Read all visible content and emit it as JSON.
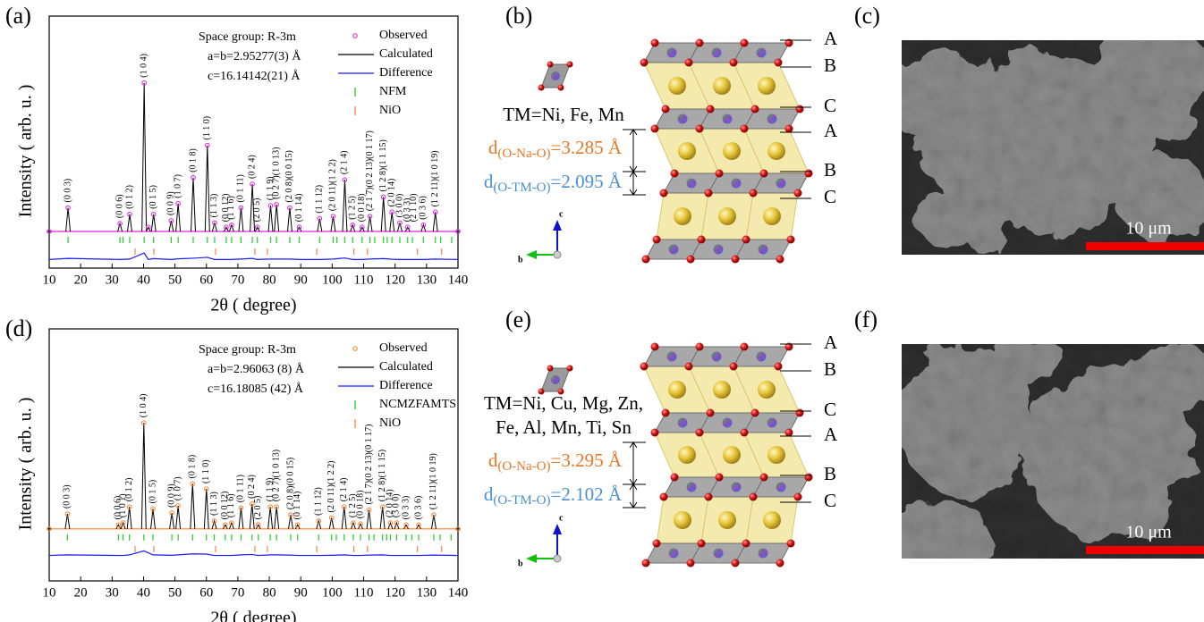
{
  "chart_data": [
    {
      "type": "line",
      "panel": "(a)",
      "ylabel": "Intensity ( arb. u. )",
      "xlabel": "2θ ( degree)",
      "annotations": [
        "Space group: R-3m",
        "a=b=2.95277(3) Å",
        "c=16.14142(21) Å"
      ],
      "xlim": [
        10,
        140
      ],
      "xticks": [
        10,
        20,
        30,
        40,
        50,
        60,
        70,
        80,
        90,
        100,
        110,
        120,
        130,
        140
      ],
      "ylim": [
        -17,
        100
      ],
      "x": [
        10,
        16,
        32.5,
        35.6,
        40.2,
        41.5,
        43.2,
        48.8,
        51,
        55.8,
        60.3,
        62.6,
        66.3,
        68,
        71,
        74.6,
        76.2,
        80.4,
        82.3,
        86.5,
        89.5,
        96,
        100.3,
        104,
        106.5,
        109.5,
        112,
        116.3,
        119,
        121.5,
        124,
        129,
        132.8,
        140
      ],
      "series": [
        {
          "name": "Observed",
          "color": "#e020e0",
          "marker": "circle",
          "values": [
            0,
            11,
            3.7,
            8,
            69,
            2,
            8,
            5,
            13,
            25,
            40,
            4,
            2,
            3,
            11,
            22,
            2,
            12,
            12.5,
            11,
            2,
            6,
            7,
            24,
            3,
            2,
            7,
            16,
            9,
            4,
            2,
            3,
            9,
            0
          ]
        },
        {
          "name": "Calculated",
          "color": "#000000",
          "values": [
            0,
            11,
            3.7,
            8,
            69,
            2,
            8,
            5,
            13,
            25,
            40,
            4,
            2,
            3,
            11,
            22,
            2,
            12,
            12.5,
            11,
            2,
            6,
            7,
            24,
            3,
            2,
            7,
            16,
            9,
            4,
            2,
            3,
            9,
            0
          ]
        },
        {
          "name": "Difference",
          "color": "#1a1aff",
          "values": [
            -13,
            -12.5,
            -13,
            -12.8,
            -10,
            -13,
            -12.6,
            -13,
            -12.7,
            -12.4,
            -12,
            -13,
            -13,
            -13,
            -12.8,
            -12.5,
            -13,
            -12.8,
            -12.8,
            -12.8,
            -13,
            -13,
            -12.8,
            -12.3,
            -13,
            -13,
            -12.8,
            -12.6,
            -12.9,
            -13,
            -13,
            -13,
            -12.8,
            -13
          ]
        }
      ],
      "reflections": [
        {
          "name": "NFM",
          "color": "#22cc22",
          "positions": [
            16,
            32.5,
            33.5,
            35.6,
            40.2,
            43.2,
            48.8,
            51,
            55.8,
            60.3,
            62.6,
            66.3,
            68,
            71,
            74.6,
            76.2,
            80.4,
            82.3,
            86.5,
            89.5,
            96,
            100.3,
            101.5,
            104,
            106.5,
            109.5,
            112,
            113.5,
            116.3,
            117.5,
            119,
            121.5,
            124,
            125.5,
            129,
            132.8,
            134.5,
            138
          ]
        },
        {
          "name": "NiO",
          "color": "#ff8040",
          "positions": [
            37.3,
            43.3,
            62.9,
            75.4,
            79.4,
            95.1,
            106.9,
            111.2,
            127.1,
            134.8
          ]
        }
      ],
      "peak_labels": [
        {
          "x": 16,
          "label": "(0 0 3)"
        },
        {
          "x": 32.5,
          "label": "(0 0 6)"
        },
        {
          "x": 35.6,
          "label": "(0 1 2)"
        },
        {
          "x": 40.2,
          "label": "(1 0 4)"
        },
        {
          "x": 43.2,
          "label": "(0 1 5)"
        },
        {
          "x": 48.8,
          "label": "(0 0 9)"
        },
        {
          "x": 51,
          "label": "(1 0 7)"
        },
        {
          "x": 55.8,
          "label": "(0 1 8)"
        },
        {
          "x": 60.3,
          "label": "(1 1 0)"
        },
        {
          "x": 62.6,
          "label": "(1 1 3)"
        },
        {
          "x": 66.3,
          "label": "(0 0 12)"
        },
        {
          "x": 68,
          "label": "(1 1 6)"
        },
        {
          "x": 71,
          "label": "(0 1 11)"
        },
        {
          "x": 74.6,
          "label": "(0 2 4)"
        },
        {
          "x": 76.2,
          "label": "(2 0 5)"
        },
        {
          "x": 80.4,
          "label": "(1 1 9)"
        },
        {
          "x": 82.3,
          "label": "(0 2 7)(1 0 13)"
        },
        {
          "x": 86.5,
          "label": "(2 0 8)(0 0 15)"
        },
        {
          "x": 89.5,
          "label": "(0 1 14)"
        },
        {
          "x": 96,
          "label": "(1 1 12)"
        },
        {
          "x": 100.3,
          "label": "(2 0 11)(1 2 2)"
        },
        {
          "x": 104,
          "label": "(2 1 4)"
        },
        {
          "x": 106.5,
          "label": "(1 2 5)"
        },
        {
          "x": 109.5,
          "label": "(0 0 18)"
        },
        {
          "x": 112,
          "label": "(2 1 7)(0 2 13)(0 1 17)"
        },
        {
          "x": 116.3,
          "label": "(1 2 8)(1 1 15)"
        },
        {
          "x": 119,
          "label": "(2 0 14)"
        },
        {
          "x": 121.5,
          "label": "(3 0 0)"
        },
        {
          "x": 124,
          "label": "(0 3 3)"
        },
        {
          "x": 126,
          "label": "(2 1 10)"
        },
        {
          "x": 129,
          "label": "(0 3 6)"
        },
        {
          "x": 132.8,
          "label": "(1 2 11)(1 0 19)"
        }
      ]
    },
    {
      "type": "line",
      "panel": "(d)",
      "ylabel": "Intensity ( arb. u. )",
      "xlabel": "2θ ( degree)",
      "annotations": [
        "Space group: R-3m",
        "a=b=2.96063 (8) Å",
        "c=16.18085 (42) Å"
      ],
      "xlim": [
        10,
        140
      ],
      "xticks": [
        10,
        20,
        30,
        40,
        50,
        60,
        70,
        80,
        90,
        100,
        110,
        120,
        130,
        140
      ],
      "ylim": [
        -26,
        100
      ],
      "x": [
        10,
        15.8,
        32,
        33.5,
        35.5,
        40.1,
        43,
        49,
        51,
        55.6,
        60,
        62.5,
        66,
        68,
        71,
        74.5,
        76.5,
        80.3,
        82.3,
        86.8,
        89,
        95.7,
        99.8,
        103.8,
        106.7,
        109,
        111.7,
        116,
        118.5,
        120.5,
        123.5,
        127.5,
        132.3,
        140
      ],
      "series": [
        {
          "name": "Observed",
          "color": "#ff7f27",
          "marker": "circle",
          "values": [
            0,
            7.5,
            2,
            3,
            11,
            53,
            10,
            8,
            11.5,
            22.5,
            20,
            4,
            2,
            3,
            10.5,
            12.5,
            2,
            11,
            11,
            7,
            2,
            4,
            5.5,
            11,
            3,
            2.5,
            9.5,
            11,
            3,
            3,
            2,
            2,
            7,
            0
          ]
        },
        {
          "name": "Calculated",
          "color": "#000000",
          "values": [
            0,
            7.5,
            2,
            3,
            11,
            53,
            10,
            8,
            11.5,
            22.5,
            20,
            4,
            2,
            3,
            10.5,
            12.5,
            2,
            11,
            11,
            7,
            2,
            4,
            5.5,
            11,
            3,
            2.5,
            9.5,
            11,
            3,
            3,
            2,
            2,
            7,
            0
          ]
        },
        {
          "name": "Difference",
          "color": "#1a1aff",
          "values": [
            -13.3,
            -13,
            -13.3,
            -13.3,
            -13,
            -11,
            -13,
            -13.2,
            -13,
            -12.5,
            -12.6,
            -13.3,
            -13.3,
            -13.3,
            -13,
            -12.8,
            -13.3,
            -13,
            -13,
            -13.1,
            -13.3,
            -13.3,
            -13.2,
            -13,
            -13.3,
            -13.3,
            -13.1,
            -13,
            -13.3,
            -13.3,
            -13.3,
            -13.3,
            -13.1,
            -13.3
          ]
        }
      ],
      "reflections": [
        {
          "name": "NCMZFAMTS",
          "color": "#22cc22",
          "positions": [
            15.8,
            32,
            33.5,
            35.5,
            40.1,
            43,
            49,
            51,
            55.6,
            60,
            62.5,
            66,
            68,
            71,
            74.5,
            76.5,
            80.3,
            82.3,
            86.8,
            89,
            95.7,
            99.8,
            101.3,
            103.8,
            106.7,
            109,
            111.7,
            113.3,
            116,
            117.3,
            118.5,
            120.5,
            123.5,
            125.3,
            127.5,
            132.3,
            134.3,
            137.8
          ]
        },
        {
          "name": "NiO",
          "color": "#ff8040",
          "positions": [
            37.3,
            43.3,
            62.9,
            75.4,
            79.4,
            95.1,
            106.9,
            111.2,
            127.1,
            134.8
          ]
        }
      ],
      "peak_labels": [
        {
          "x": 15.8,
          "label": "(0 0 3)"
        },
        {
          "x": 32,
          "label": "(0 0 6)"
        },
        {
          "x": 33.5,
          "label": "(1 0 1)"
        },
        {
          "x": 35.5,
          "label": "(0 1 2)"
        },
        {
          "x": 40.1,
          "label": "(1 0 4)"
        },
        {
          "x": 43,
          "label": "(0 1 5)"
        },
        {
          "x": 49,
          "label": "(0 0 9)"
        },
        {
          "x": 51,
          "label": "(1 0 7)"
        },
        {
          "x": 55.6,
          "label": "(0 1 8)"
        },
        {
          "x": 60,
          "label": "(1 1 0)"
        },
        {
          "x": 62.5,
          "label": "(1 1 3)"
        },
        {
          "x": 66,
          "label": "(0 0 12)"
        },
        {
          "x": 68,
          "label": "(1 1 6)"
        },
        {
          "x": 71,
          "label": "(0 1 11)"
        },
        {
          "x": 74.5,
          "label": "(0 2 4)"
        },
        {
          "x": 76.5,
          "label": "(2 0 5)"
        },
        {
          "x": 80.3,
          "label": "(1 1 9)"
        },
        {
          "x": 82.3,
          "label": "(0 2 7)(1 0 13)"
        },
        {
          "x": 86.8,
          "label": "(2 0 8)(0 0 15)"
        },
        {
          "x": 89,
          "label": "(0 1 14)"
        },
        {
          "x": 95.7,
          "label": "(1 1 12)"
        },
        {
          "x": 99.8,
          "label": "(2 0 11)(1 2 2)"
        },
        {
          "x": 103.8,
          "label": "(2 1 4)"
        },
        {
          "x": 106.7,
          "label": "(1 2 5)"
        },
        {
          "x": 109,
          "label": "(0 0 18)"
        },
        {
          "x": 111.7,
          "label": "(2 1 7)(0 2 13)(0 1 17)"
        },
        {
          "x": 116,
          "label": "(1 2 8)(1 1 15)"
        },
        {
          "x": 118.5,
          "label": "(2 0 14)"
        },
        {
          "x": 120.5,
          "label": "(3 0 0)"
        },
        {
          "x": 123.5,
          "label": "(0 3 3)"
        },
        {
          "x": 127.5,
          "label": "(0 3 6)"
        },
        {
          "x": 132.3,
          "label": "(1 2 11)(1 0 19)"
        }
      ]
    }
  ],
  "diagrams": [
    {
      "panel": "(b)",
      "tm": [
        "TM=Ni, Fe, Mn"
      ],
      "d_na": {
        "symbol": "d",
        "sub": "(O-Na-O)",
        "value": "=3.285 Å",
        "color": "#e87722"
      },
      "d_tm": {
        "symbol": "d",
        "sub": "(O-TM-O)",
        "value": "=2.095 Å",
        "color": "#4a90d0"
      },
      "layers": [
        "A",
        "B",
        "C",
        "A",
        "B",
        "C"
      ],
      "axes": [
        "c",
        "b"
      ]
    },
    {
      "panel": "(e)",
      "tm": [
        "TM=Ni, Cu, Mg, Zn,",
        "Fe, Al, Mn, Ti, Sn"
      ],
      "d_na": {
        "symbol": "d",
        "sub": "(O-Na-O)",
        "value": "=3.295 Å",
        "color": "#e87722"
      },
      "d_tm": {
        "symbol": "d",
        "sub": "(O-TM-O)",
        "value": "=2.102 Å",
        "color": "#4a90d0"
      },
      "layers": [
        "A",
        "B",
        "C",
        "A",
        "B",
        "C"
      ],
      "axes": [
        "c",
        "b"
      ]
    }
  ],
  "images": [
    {
      "panel": "(c)",
      "scale": "10 μm"
    },
    {
      "panel": "(f)",
      "scale": "10 μm"
    }
  ]
}
